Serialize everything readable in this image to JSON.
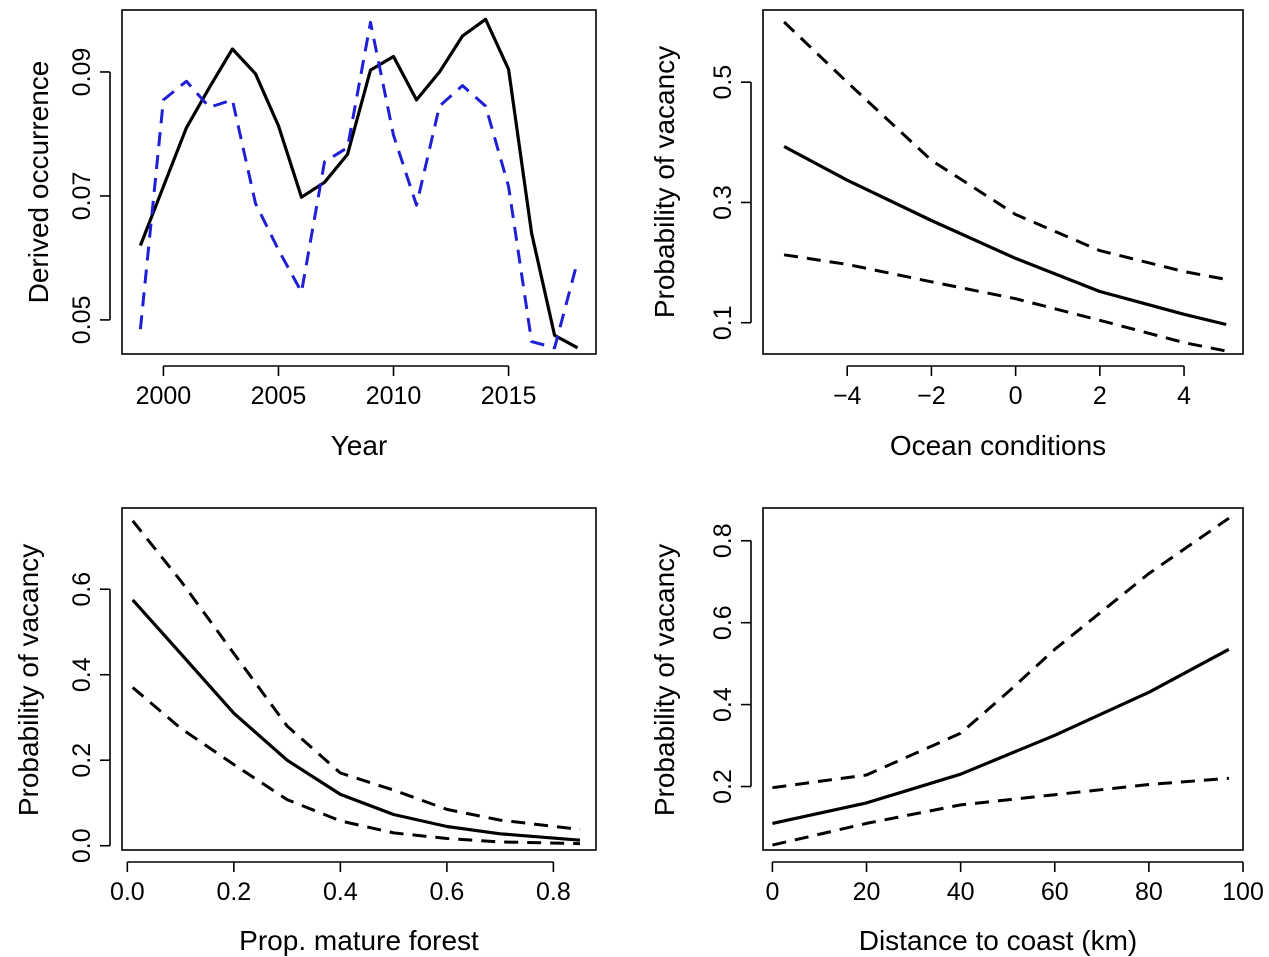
{
  "chart_data": [
    {
      "type": "line",
      "xlabel": "Year",
      "ylabel": "Derived occurrence",
      "xlim": [
        1998.2,
        2018.8
      ],
      "ylim": [
        0.0445,
        0.1
      ],
      "xticks": [
        2000,
        2005,
        2010,
        2015
      ],
      "xtick_labels": [
        "2000",
        "2005",
        "2010",
        "2015"
      ],
      "yticks": [
        0.05,
        0.07,
        0.09
      ],
      "ytick_labels": [
        "0.05",
        "0.07",
        "0.09"
      ],
      "legend": "none",
      "grid": false,
      "series": [
        {
          "style": "solid",
          "color": "#000000",
          "x": [
            1999,
            2000,
            2001,
            2002,
            2003,
            2004,
            2005,
            2006,
            2007,
            2008,
            2009,
            2010,
            2011,
            2012,
            2013,
            2014,
            2015,
            2016,
            2017,
            2018
          ],
          "y": [
            0.062,
            0.0715,
            0.081,
            0.0875,
            0.0937,
            0.0897,
            0.0813,
            0.0698,
            0.0722,
            0.0767,
            0.0903,
            0.0925,
            0.0855,
            0.09,
            0.0958,
            0.0985,
            0.0904,
            0.064,
            0.0475,
            0.0455
          ]
        },
        {
          "style": "dashed",
          "color": "#1f1fd6",
          "x": [
            1999,
            2000,
            2001,
            2002,
            2003,
            2004,
            2005,
            2006,
            2007,
            2008,
            2009,
            2010,
            2011,
            2012,
            2013,
            2014,
            2015,
            2016,
            2017,
            2018
          ],
          "y": [
            0.0485,
            0.0855,
            0.0885,
            0.0843,
            0.0855,
            0.0688,
            0.0613,
            0.0545,
            0.0755,
            0.0778,
            0.098,
            0.0798,
            0.0685,
            0.0845,
            0.0878,
            0.0845,
            0.0715,
            0.0465,
            0.0455,
            0.0595
          ]
        }
      ]
    },
    {
      "type": "line",
      "xlabel": "Ocean conditions",
      "ylabel": "Probability of vacancy",
      "xlim": [
        -6,
        5.4
      ],
      "ylim": [
        0.048,
        0.62
      ],
      "xticks": [
        -4,
        -2,
        0,
        2,
        4
      ],
      "xtick_labels": [
        "−4",
        "−2",
        "0",
        "2",
        "4"
      ],
      "yticks": [
        0.1,
        0.3,
        0.5
      ],
      "ytick_labels": [
        "0.1",
        "0.3",
        "0.5"
      ],
      "legend": "none",
      "grid": false,
      "series": [
        {
          "style": "solid",
          "color": "#000000",
          "x": [
            -5.5,
            -4,
            -2,
            0,
            2,
            4,
            5
          ],
          "y": [
            0.393,
            0.337,
            0.27,
            0.207,
            0.152,
            0.114,
            0.097
          ]
        },
        {
          "style": "dashed",
          "color": "#000000",
          "x": [
            -5.5,
            -4,
            -2,
            0,
            2,
            4,
            5
          ],
          "y": [
            0.6,
            0.5,
            0.37,
            0.28,
            0.22,
            0.185,
            0.172
          ]
        },
        {
          "style": "dashed",
          "color": "#000000",
          "x": [
            -5.5,
            -4,
            -2,
            0,
            2,
            4,
            5
          ],
          "y": [
            0.213,
            0.197,
            0.168,
            0.14,
            0.104,
            0.067,
            0.053
          ]
        }
      ]
    },
    {
      "type": "line",
      "xlabel": "Prop. mature forest",
      "ylabel": "Probability of vacancy",
      "xlim": [
        -0.01,
        0.88
      ],
      "ylim": [
        -0.01,
        0.79
      ],
      "xticks": [
        0.0,
        0.2,
        0.4,
        0.6,
        0.8
      ],
      "xtick_labels": [
        "0.0",
        "0.2",
        "0.4",
        "0.6",
        "0.8"
      ],
      "yticks": [
        0.0,
        0.2,
        0.4,
        0.6
      ],
      "ytick_labels": [
        "0.0",
        "0.2",
        "0.4",
        "0.6"
      ],
      "legend": "none",
      "grid": false,
      "series": [
        {
          "style": "solid",
          "color": "#000000",
          "x": [
            0.01,
            0.1,
            0.2,
            0.3,
            0.4,
            0.5,
            0.6,
            0.7,
            0.85
          ],
          "y": [
            0.575,
            0.45,
            0.31,
            0.2,
            0.12,
            0.073,
            0.045,
            0.028,
            0.013
          ]
        },
        {
          "style": "dashed",
          "color": "#000000",
          "x": [
            0.01,
            0.1,
            0.2,
            0.3,
            0.4,
            0.5,
            0.6,
            0.7,
            0.85
          ],
          "y": [
            0.76,
            0.62,
            0.45,
            0.28,
            0.17,
            0.13,
            0.085,
            0.06,
            0.038
          ]
        },
        {
          "style": "dashed",
          "color": "#000000",
          "x": [
            0.01,
            0.1,
            0.2,
            0.3,
            0.4,
            0.5,
            0.6,
            0.7,
            0.85
          ],
          "y": [
            0.37,
            0.275,
            0.19,
            0.108,
            0.058,
            0.03,
            0.017,
            0.009,
            0.005
          ]
        }
      ]
    },
    {
      "type": "line",
      "xlabel": "Distance to coast (km)",
      "ylabel": "Probability of vacancy",
      "xlim": [
        -2,
        100
      ],
      "ylim": [
        0.045,
        0.88
      ],
      "xticks": [
        0,
        20,
        40,
        60,
        80,
        100
      ],
      "xtick_labels": [
        "0",
        "20",
        "40",
        "60",
        "80",
        "100"
      ],
      "yticks": [
        0.2,
        0.4,
        0.6,
        0.8
      ],
      "ytick_labels": [
        "0.2",
        "0.4",
        "0.6",
        "0.8"
      ],
      "legend": "none",
      "grid": false,
      "series": [
        {
          "style": "solid",
          "color": "#000000",
          "x": [
            0,
            20,
            40,
            60,
            80,
            97
          ],
          "y": [
            0.11,
            0.16,
            0.23,
            0.325,
            0.43,
            0.535
          ]
        },
        {
          "style": "dashed",
          "color": "#000000",
          "x": [
            0,
            20,
            40,
            50,
            60,
            80,
            97
          ],
          "y": [
            0.197,
            0.228,
            0.33,
            0.43,
            0.535,
            0.72,
            0.855
          ]
        },
        {
          "style": "dashed",
          "color": "#000000",
          "x": [
            0,
            20,
            40,
            60,
            80,
            97
          ],
          "y": [
            0.057,
            0.11,
            0.155,
            0.18,
            0.205,
            0.22
          ]
        }
      ]
    }
  ]
}
